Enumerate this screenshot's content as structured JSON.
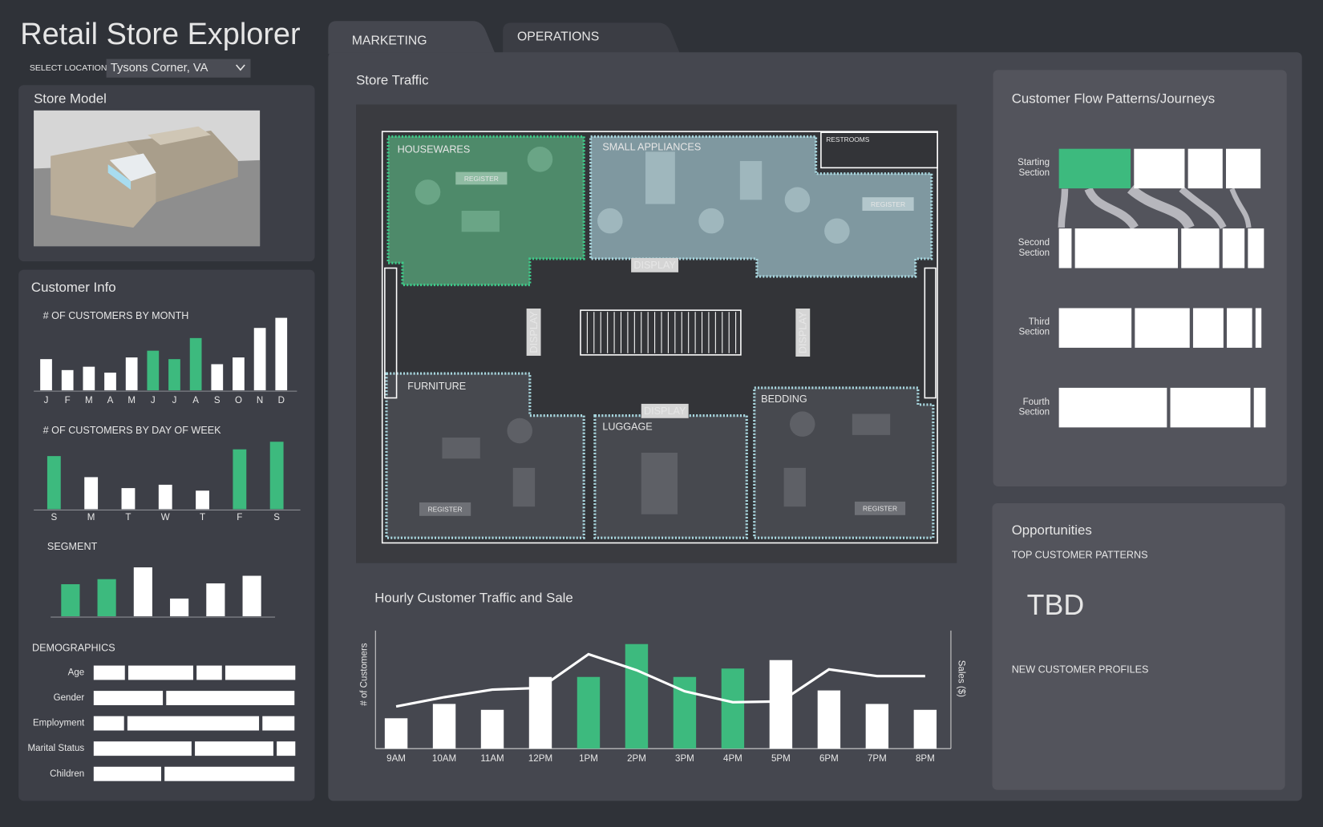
{
  "header": {
    "title": "Retail Store Explorer",
    "location_label": "SELECT LOCATION",
    "location": "Tysons Corner, VA"
  },
  "tabs": [
    "MARKETING",
    "OPERATIONS"
  ],
  "store_model": {
    "title": "Store Model"
  },
  "customer_info": {
    "title": "Customer Info",
    "by_month": {
      "type": "bar",
      "title": "# OF CUSTOMERS BY MONTH",
      "categories": [
        "J",
        "F",
        "M",
        "A",
        "M",
        "J",
        "J",
        "A",
        "S",
        "O",
        "N",
        "D"
      ],
      "values": [
        37,
        24,
        28,
        21,
        39,
        47,
        37,
        62,
        31,
        39,
        74,
        86
      ],
      "colors": [
        "#ffffff",
        "#ffffff",
        "#ffffff",
        "#ffffff",
        "#ffffff",
        "#3dba7e",
        "#3dba7e",
        "#3dba7e",
        "#ffffff",
        "#ffffff",
        "#ffffff",
        "#ffffff"
      ]
    },
    "by_day": {
      "type": "bar",
      "title": "# OF CUSTOMERS BY DAY OF WEEK",
      "categories": [
        "S",
        "M",
        "T",
        "W",
        "T",
        "F",
        "S"
      ],
      "values": [
        63,
        38,
        25,
        29,
        22,
        71,
        80
      ],
      "colors": [
        "#3dba7e",
        "#ffffff",
        "#ffffff",
        "#ffffff",
        "#ffffff",
        "#3dba7e",
        "#3dba7e"
      ]
    },
    "segment": {
      "type": "bar",
      "title": "SEGMENT",
      "values": [
        38,
        44,
        58,
        21,
        39,
        48
      ],
      "colors": [
        "#3dba7e",
        "#3dba7e",
        "#ffffff",
        "#ffffff",
        "#ffffff",
        "#ffffff"
      ]
    },
    "demographics": {
      "type": "stacked-bar",
      "title": "DEMOGRAPHICS",
      "color": "#ffffff",
      "rows": [
        {
          "label": "Age",
          "values": [
            37,
            77,
            30,
            83
          ]
        },
        {
          "label": "Gender",
          "values": [
            82,
            152
          ]
        },
        {
          "label": "Employment",
          "values": [
            36,
            156,
            38
          ]
        },
        {
          "label": "Marital Status",
          "values": [
            116,
            93,
            22
          ]
        },
        {
          "label": "Children",
          "values": [
            80,
            154
          ]
        }
      ]
    }
  },
  "store_traffic": {
    "title": "Store Traffic",
    "sections": [
      "HOUSEWARES",
      "SMALL APPLIANCES",
      "RESTROOMS",
      "FURNITURE",
      "LUGGAGE",
      "BEDDING"
    ],
    "registers": [
      "REGISTER",
      "REGISTER",
      "REGISTER",
      "REGISTER"
    ],
    "displays": [
      "DISPLAY",
      "DISPLAY",
      "DISPLAY",
      "DISPLAY"
    ]
  },
  "hourly": {
    "type": "bar",
    "title": "Hourly Customer Traffic and Sale",
    "ylabel": "# of Customers",
    "y2label": "Sales ($)",
    "categories": [
      "9AM",
      "10AM",
      "11AM",
      "12PM",
      "1PM",
      "2PM",
      "3PM",
      "4PM",
      "5PM",
      "6PM",
      "7PM",
      "8PM"
    ],
    "ylim": [
      0,
      140
    ],
    "y2lim": [
      0,
      140
    ],
    "series": [
      {
        "type": "bar",
        "values": [
          36,
          53,
          46,
          85,
          85,
          124,
          85,
          95,
          105,
          69,
          53,
          46
        ],
        "colors": [
          "#ffffff",
          "#ffffff",
          "#ffffff",
          "#ffffff",
          "#3dba7e",
          "#3dba7e",
          "#3dba7e",
          "#3dba7e",
          "#ffffff",
          "#ffffff",
          "#ffffff",
          "#ffffff"
        ]
      },
      {
        "type": "line",
        "axis": "y2",
        "color": "#ffffff",
        "values": [
          50,
          61,
          70,
          72,
          112,
          93,
          68,
          55,
          56,
          94,
          86,
          86
        ]
      }
    ]
  },
  "customer_flow": {
    "type": "stacked-bar",
    "title": "Customer Flow Patterns/Journeys",
    "rows": [
      {
        "label": "Starting Section",
        "values": [
          85,
          60,
          41,
          41
        ],
        "colors": [
          "#3dba7e",
          "#ffffff",
          "#ffffff",
          "#ffffff"
        ]
      },
      {
        "label": "Second Section",
        "values": [
          15,
          122,
          45,
          26,
          19
        ],
        "colors": [
          "#ffffff",
          "#ffffff",
          "#ffffff",
          "#ffffff",
          "#ffffff"
        ]
      },
      {
        "label": "Third Section",
        "values": [
          86,
          65,
          36,
          30,
          7
        ],
        "colors": [
          "#ffffff",
          "#ffffff",
          "#ffffff",
          "#ffffff",
          "#ffffff"
        ]
      },
      {
        "label": "Fourth Section",
        "values": [
          128,
          95,
          14
        ],
        "colors": [
          "#ffffff",
          "#ffffff",
          "#ffffff"
        ]
      }
    ]
  },
  "opportunities": {
    "title": "Opportunities",
    "top_patterns_label": "TOP CUSTOMER PATTERNS",
    "top_patterns": "TBD",
    "new_profiles_label": "NEW CUSTOMER PROFILES"
  }
}
